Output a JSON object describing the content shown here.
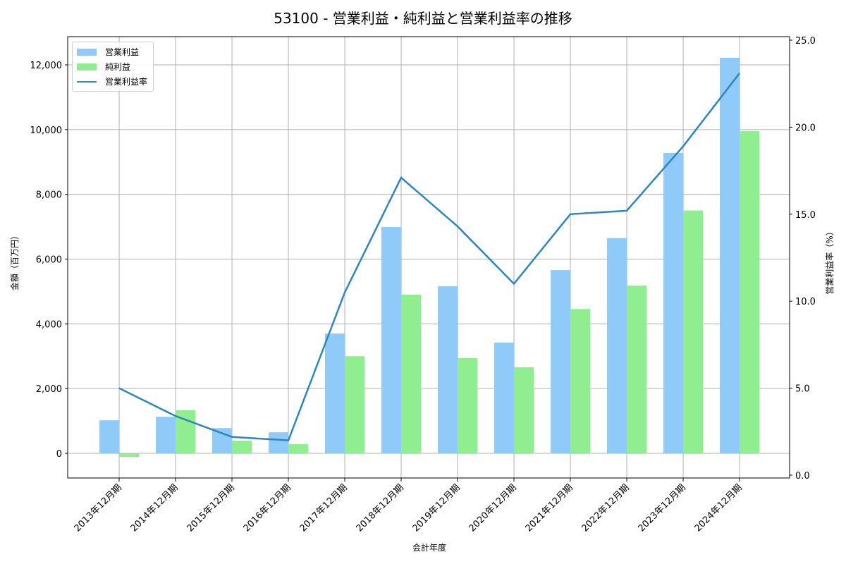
{
  "title": "53100 - 営業利益・純利益と営業利益率の推移",
  "legend": {
    "items": [
      {
        "label": "営業利益",
        "type": "bar",
        "color": "#90CAF9"
      },
      {
        "label": "純利益",
        "type": "bar",
        "color": "#90EE90"
      },
      {
        "label": "営業利益率",
        "type": "line",
        "color": "#2E86C1"
      }
    ]
  },
  "axes": {
    "xlabel": "会計年度",
    "ylabel_left": "金額（百万円）",
    "ylabel_right": "営業利益率（%）",
    "left_ticks": [
      "0",
      "2,000",
      "4,000",
      "6,000",
      "8,000",
      "10,000",
      "12,000"
    ],
    "right_ticks": [
      "0.0",
      "5.0",
      "10.0",
      "15.0",
      "20.0",
      "25.0"
    ]
  },
  "chart_data": {
    "type": "bar",
    "title": "53100 - 営業利益・純利益と営業利益率の推移",
    "xlabel": "会計年度",
    "ylabel": "金額（百万円）",
    "ylabel_right": "営業利益率（%）",
    "categories": [
      "2013年12月期",
      "2014年12月期",
      "2015年12月期",
      "2016年12月期",
      "2017年12月期",
      "2018年12月期",
      "2019年12月期",
      "2020年12月期",
      "2021年12月期",
      "2022年12月期",
      "2023年12月期",
      "2024年12月期"
    ],
    "series": [
      {
        "name": "営業利益",
        "type": "bar",
        "axis": "left",
        "color": "#90CAF9",
        "values": [
          1020,
          1130,
          780,
          650,
          3700,
          6990,
          5160,
          3420,
          5660,
          6650,
          9280,
          12220
        ]
      },
      {
        "name": "純利益",
        "type": "bar",
        "axis": "left",
        "color": "#90EE90",
        "values": [
          -110,
          1330,
          390,
          280,
          3000,
          4900,
          2940,
          2660,
          4460,
          5180,
          7500,
          9950
        ]
      },
      {
        "name": "営業利益率",
        "type": "line",
        "axis": "right",
        "color": "#2E86C1",
        "values": [
          5.0,
          3.4,
          2.2,
          2.0,
          10.5,
          17.1,
          14.3,
          11.0,
          15.0,
          15.2,
          18.9,
          23.1
        ]
      }
    ],
    "ylim": [
      -700,
      12950
    ],
    "ylim_right": [
      0,
      25.0
    ],
    "left_ticks": [
      0,
      2000,
      4000,
      6000,
      8000,
      10000,
      12000
    ],
    "right_ticks": [
      0.0,
      5.0,
      10.0,
      15.0,
      20.0,
      25.0
    ],
    "grid": true,
    "legend_position": "upper left"
  }
}
